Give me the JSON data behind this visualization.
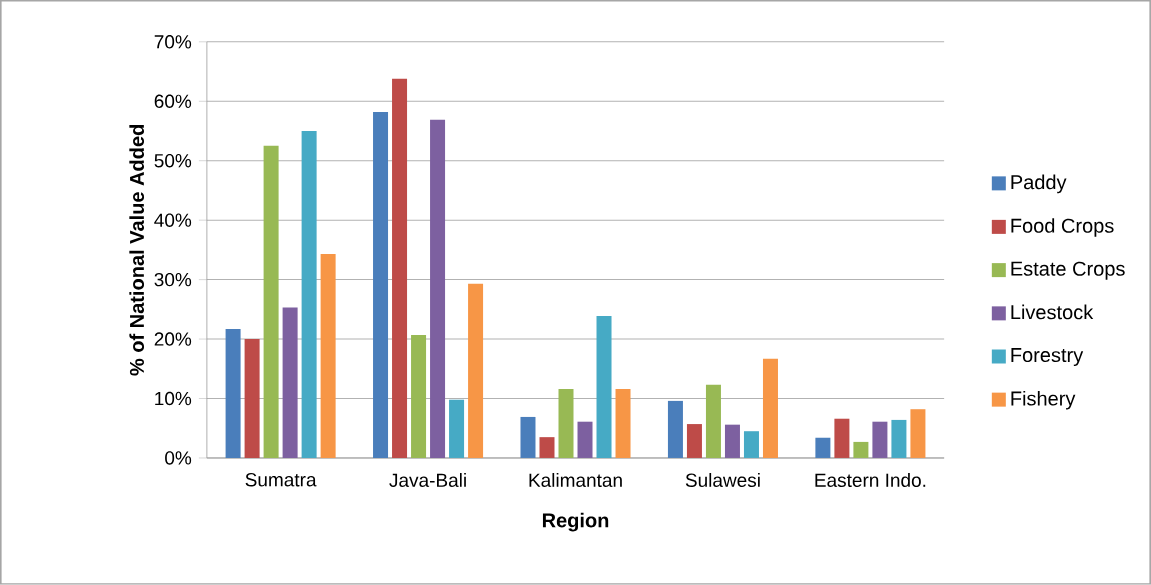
{
  "chart_data": {
    "type": "bar",
    "xlabel": "Region",
    "ylabel": "% of National Value Added",
    "categories": [
      "Sumatra",
      "Java-Bali",
      "Kalimantan",
      "Sulawesi",
      "Eastern Indo."
    ],
    "series": [
      {
        "name": "Paddy",
        "color": "#4a7ebb",
        "values": [
          21.7,
          58.2,
          6.9,
          9.6,
          3.4
        ]
      },
      {
        "name": "Food Crops",
        "color": "#be4b48",
        "values": [
          20.0,
          63.8,
          3.5,
          5.7,
          6.6
        ]
      },
      {
        "name": "Estate Crops",
        "color": "#98b954",
        "values": [
          52.5,
          20.7,
          11.6,
          12.3,
          2.7
        ]
      },
      {
        "name": "Livestock",
        "color": "#7d60a0",
        "values": [
          25.3,
          56.9,
          6.1,
          5.6,
          6.1
        ]
      },
      {
        "name": "Forestry",
        "color": "#46aac5",
        "values": [
          55.0,
          9.8,
          23.9,
          4.5,
          6.4
        ]
      },
      {
        "name": "Fishery",
        "color": "#f79646",
        "values": [
          34.3,
          29.3,
          11.6,
          16.7,
          8.2
        ]
      }
    ],
    "ylim": [
      0,
      70
    ],
    "yticks": [
      {
        "value": 0,
        "label": "0%"
      },
      {
        "value": 10,
        "label": "10%"
      },
      {
        "value": 20,
        "label": "20%"
      },
      {
        "value": 30,
        "label": "30%"
      },
      {
        "value": 40,
        "label": "40%"
      },
      {
        "value": 50,
        "label": "50%"
      },
      {
        "value": 60,
        "label": "60%"
      },
      {
        "value": 70,
        "label": "70%"
      }
    ],
    "grid": "y",
    "legend": "right"
  }
}
